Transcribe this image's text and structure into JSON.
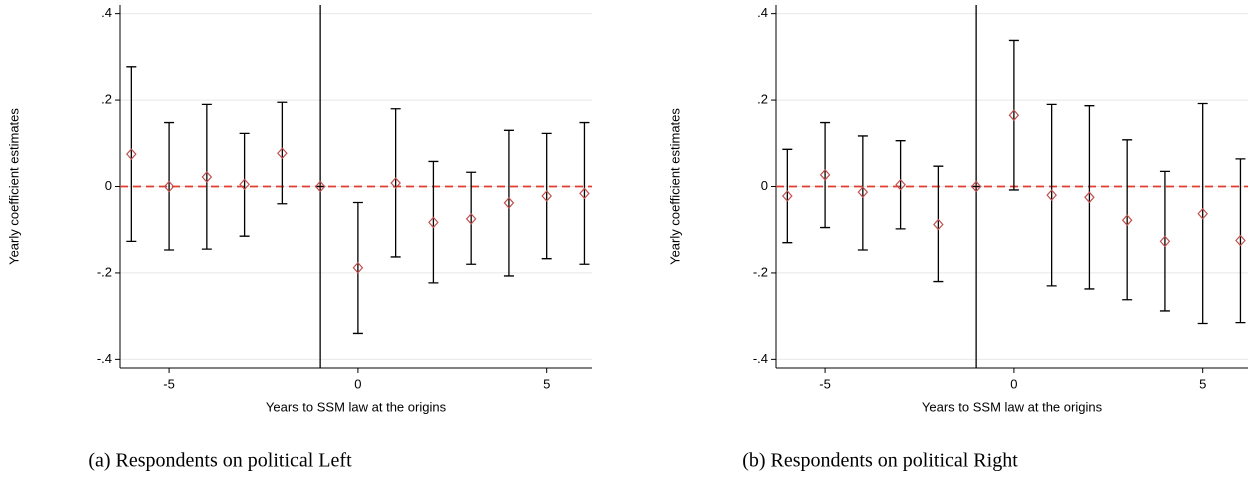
{
  "chart_data": [
    {
      "type": "errorbar",
      "caption": "(a) Respondents on political Left",
      "xlabel": "Years to SSM law at the origins",
      "ylabel": "Yearly coefficient estimates",
      "x": [
        -6,
        -5,
        -4,
        -3,
        -2,
        -1,
        0,
        1,
        2,
        3,
        4,
        5,
        6
      ],
      "values": [
        0.075,
        0.0,
        0.022,
        0.005,
        0.077,
        0,
        -0.188,
        0.008,
        -0.083,
        -0.075,
        -0.038,
        -0.022,
        -0.016
      ],
      "low": [
        -0.127,
        -0.147,
        -0.145,
        -0.115,
        -0.04,
        0,
        -0.34,
        -0.163,
        -0.223,
        -0.18,
        -0.207,
        -0.167,
        -0.18
      ],
      "high": [
        0.277,
        0.148,
        0.19,
        0.123,
        0.195,
        0,
        -0.037,
        0.18,
        0.058,
        0.033,
        0.13,
        0.123,
        0.148
      ],
      "color": "#c0504d",
      "bar_color": "#000000",
      "vline": -1,
      "hline": 0,
      "xlim": [
        -6.3,
        6.2
      ],
      "xticks": [
        -5,
        0,
        5
      ],
      "ylim": [
        -0.42,
        0.42
      ],
      "yticks": [
        {
          "value": -0.4,
          "label": "-.4"
        },
        {
          "value": -0.2,
          "label": "-.2"
        },
        0,
        {
          "value": 0.2,
          "label": ".2"
        },
        {
          "value": 0.4,
          "label": ".4"
        }
      ],
      "grid": true
    },
    {
      "type": "errorbar",
      "caption": "(b) Respondents on political Right",
      "xlabel": "Years to SSM law at the origins",
      "ylabel": "Yearly coefficient estimates",
      "x": [
        -6,
        -5,
        -4,
        -3,
        -2,
        -1,
        0,
        1,
        2,
        3,
        4,
        5,
        6
      ],
      "values": [
        -0.022,
        0.027,
        -0.013,
        0.004,
        -0.088,
        0,
        0.165,
        -0.02,
        -0.025,
        -0.078,
        -0.127,
        -0.063,
        -0.125
      ],
      "low": [
        -0.13,
        -0.095,
        -0.147,
        -0.098,
        -0.22,
        0,
        -0.008,
        -0.23,
        -0.237,
        -0.262,
        -0.288,
        -0.317,
        -0.315
      ],
      "high": [
        0.086,
        0.148,
        0.117,
        0.106,
        0.047,
        0,
        0.338,
        0.19,
        0.187,
        0.108,
        0.035,
        0.192,
        0.064
      ],
      "color": "#c0504d",
      "bar_color": "#000000",
      "vline": -1,
      "hline": 0,
      "xlim": [
        -6.3,
        6.2
      ],
      "xticks": [
        -5,
        0,
        5
      ],
      "ylim": [
        -0.42,
        0.42
      ],
      "yticks": [
        {
          "value": -0.4,
          "label": "-.4"
        },
        {
          "value": -0.2,
          "label": "-.2"
        },
        0,
        {
          "value": 0.2,
          "label": ".2"
        },
        {
          "value": 0.4,
          "label": ".4"
        }
      ],
      "grid": true
    }
  ]
}
